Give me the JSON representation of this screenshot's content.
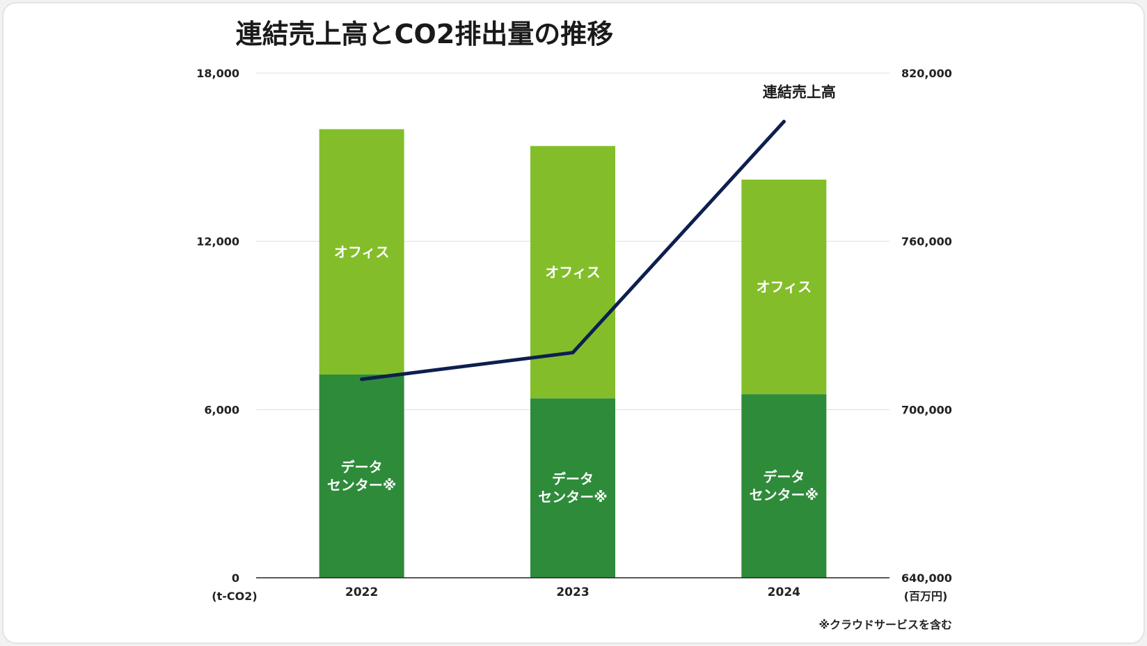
{
  "chart_data": {
    "type": "bar",
    "stacked": true,
    "title": "連結売上高とCO2排出量の推移",
    "categories": [
      "2022",
      "2023",
      "2024"
    ],
    "series": [
      {
        "name": "データ\nセンター※",
        "values": [
          7250,
          6400,
          6550
        ],
        "color": "#2e8b3a"
      },
      {
        "name": "オフィス",
        "values": [
          8750,
          9000,
          7650
        ],
        "color": "#83be2a"
      }
    ],
    "line_series": {
      "name": "連結売上高",
      "axis": "right",
      "values": [
        710800,
        720300,
        802700
      ],
      "color": "#0d1f4f"
    },
    "left_axis": {
      "unit": "(t-CO2)",
      "ylim": [
        0,
        18000
      ],
      "ticks": [
        "0",
        "6,000",
        "12,000",
        "18,000"
      ],
      "tick_values": [
        0,
        6000,
        12000,
        18000
      ]
    },
    "right_axis": {
      "unit": "(百万円)",
      "ylim": [
        640000,
        820000
      ],
      "ticks": [
        "640,000",
        "700,000",
        "760,000",
        "820,000"
      ],
      "tick_values": [
        640000,
        700000,
        760000,
        820000
      ]
    },
    "grid": true,
    "footnote": "※クラウドサービスを含む"
  },
  "colors": {
    "grid": "#dddddd",
    "axis": "#222222"
  }
}
